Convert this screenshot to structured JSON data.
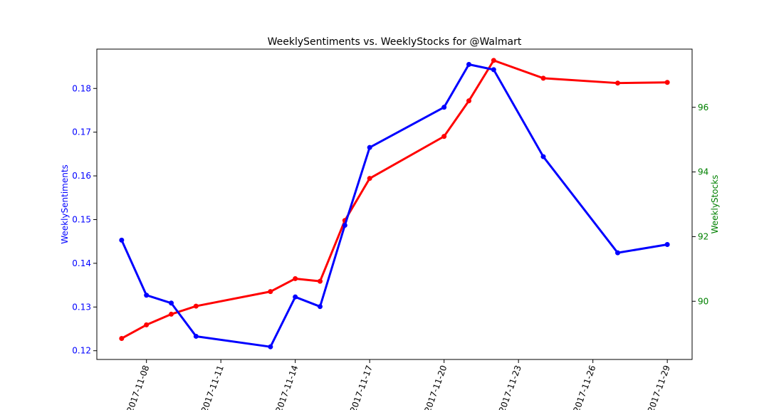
{
  "chart_data": {
    "type": "line",
    "title": "WeeklySentiments vs. WeeklyStocks for @Walmart",
    "xlabel": "",
    "x_tick_labels": [
      "2017-11-08",
      "2017-11-11",
      "2017-11-14",
      "2017-11-17",
      "2017-11-20",
      "2017-11-23",
      "2017-11-26",
      "2017-11-29"
    ],
    "xlim": [
      "2017-11-06",
      "2017-11-30"
    ],
    "y_left": {
      "label": "WeeklySentiments",
      "color": "#0000ff",
      "ylim": [
        0.118,
        0.189
      ],
      "ticks": [
        "0.12",
        "0.13",
        "0.14",
        "0.15",
        "0.16",
        "0.17",
        "0.18"
      ]
    },
    "y_right": {
      "label": "WeeklyStocks",
      "color": "#008000",
      "ylim": [
        88.2,
        97.8
      ],
      "ticks": [
        "90",
        "92",
        "94",
        "96"
      ]
    },
    "grid": false,
    "series": [
      {
        "axis": "left",
        "color": "#0000ff",
        "x": [
          "2017-11-07",
          "2017-11-08",
          "2017-11-09",
          "2017-11-10",
          "2017-11-13",
          "2017-11-14",
          "2017-11-15",
          "2017-11-16",
          "2017-11-17",
          "2017-11-20",
          "2017-11-21",
          "2017-11-22",
          "2017-11-24",
          "2017-11-27",
          "2017-11-29"
        ],
        "values": [
          0.1453,
          0.1327,
          0.1309,
          0.1233,
          0.1209,
          0.1323,
          0.1301,
          0.1487,
          0.1665,
          0.1757,
          0.1855,
          0.1843,
          0.1644,
          0.1424,
          0.1443
        ]
      },
      {
        "axis": "right",
        "color": "#ff0000",
        "x": [
          "2017-11-07",
          "2017-11-08",
          "2017-11-09",
          "2017-11-10",
          "2017-11-13",
          "2017-11-14",
          "2017-11-15",
          "2017-11-16",
          "2017-11-17",
          "2017-11-20",
          "2017-11-21",
          "2017-11-22",
          "2017-11-24",
          "2017-11-27",
          "2017-11-29"
        ],
        "values": [
          88.85,
          89.27,
          89.6,
          89.85,
          90.3,
          90.7,
          90.62,
          92.5,
          93.8,
          95.1,
          96.2,
          97.45,
          96.9,
          96.75,
          96.77
        ]
      }
    ]
  }
}
